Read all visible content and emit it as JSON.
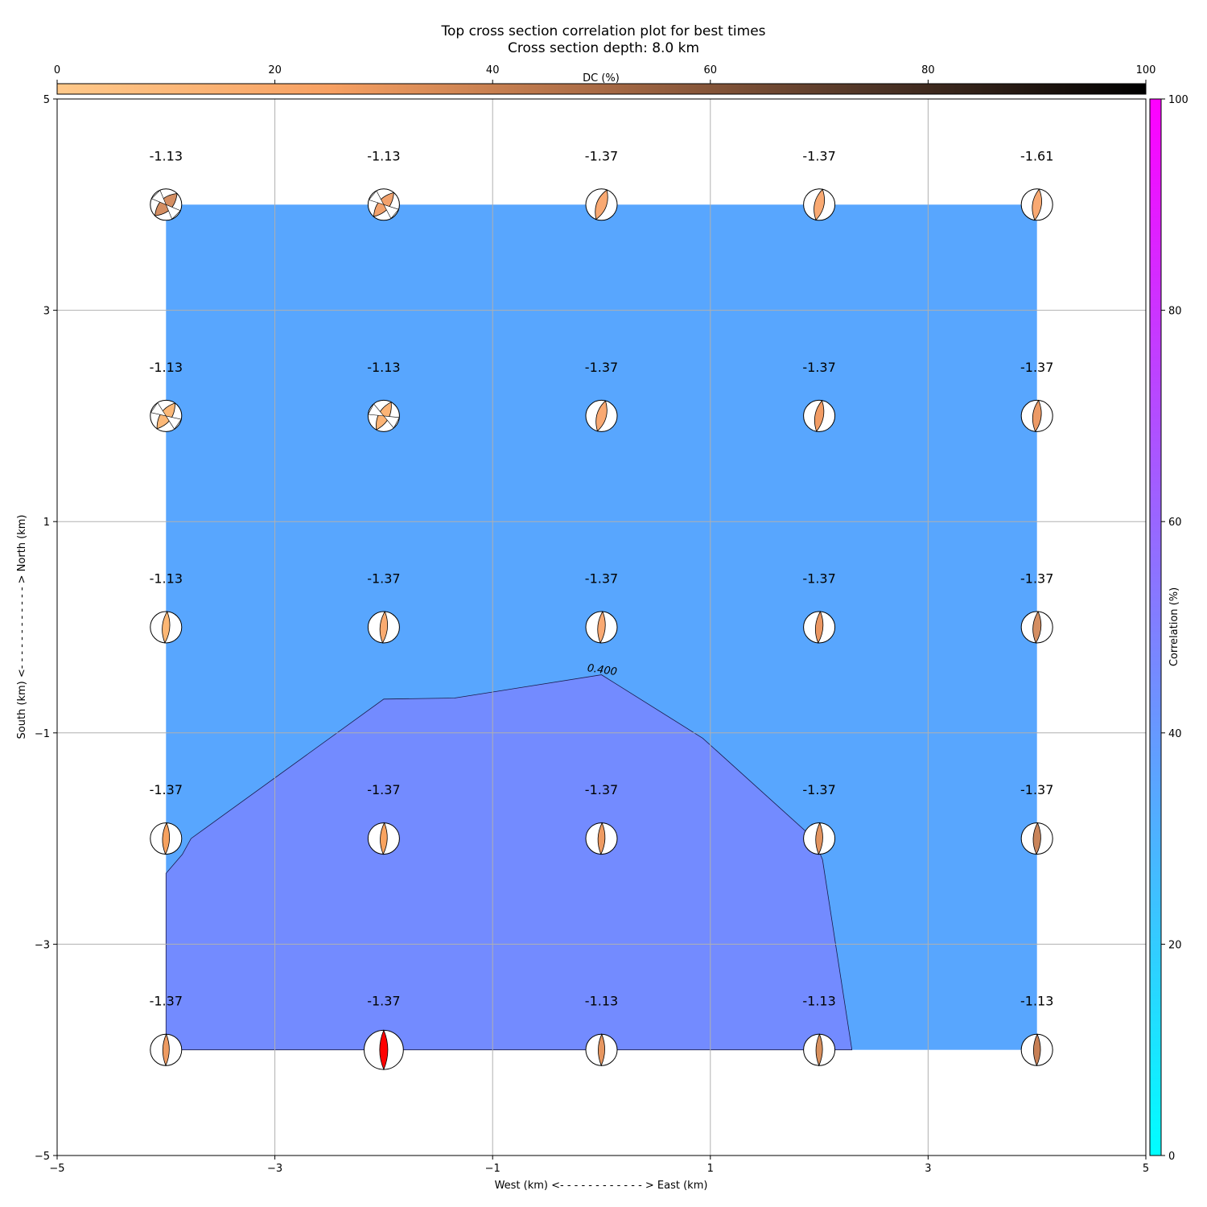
{
  "chart_data": {
    "type": "heatmap",
    "title": "Top cross section correlation plot for best times",
    "subtitle": "Cross section depth: 8.0 km",
    "xlabel": "West (km) <- - - - - - - - - - - - > East (km)",
    "ylabel": "South (km) <- - - - - - - - - - - - > North (km)",
    "xlim": [
      -5,
      5
    ],
    "ylim": [
      -5,
      5
    ],
    "xticks": [
      -5,
      -3,
      -1,
      1,
      3,
      5
    ],
    "yticks": [
      -5,
      -3,
      -1,
      1,
      3,
      5
    ],
    "grid": true,
    "dc_colorbar": {
      "label": "DC (%)",
      "range": [
        0,
        100
      ],
      "ticks": [
        0,
        20,
        40,
        60,
        80,
        100
      ],
      "colors": [
        "#ffc98a",
        "#f7a062",
        "#a86a45",
        "#4e3426",
        "#000000"
      ]
    },
    "correlation_colorbar": {
      "label": "Correlation (%)",
      "range": [
        0,
        100
      ],
      "ticks": [
        0,
        20,
        40,
        60,
        80,
        100
      ],
      "colors": [
        "#00ffff",
        "#ff00ff"
      ]
    },
    "field_regions": {
      "background_color": "#58a6fe",
      "inner_color": "#738bff",
      "extent": {
        "x": [
          -4,
          4
        ],
        "y": [
          -4,
          4
        ]
      },
      "contour_label": "0.400",
      "contour_level": 0.4,
      "contour_polygon": [
        [
          -4,
          -2.33
        ],
        [
          -3.85,
          -2.15
        ],
        [
          -3.77,
          -2.0
        ],
        [
          -2.0,
          -0.68
        ],
        [
          -1.35,
          -0.67
        ],
        [
          0.0,
          -0.45
        ],
        [
          0.93,
          -1.05
        ],
        [
          1.95,
          -2.0
        ],
        [
          2.03,
          -2.2
        ],
        [
          2.3,
          -4.0
        ],
        [
          -4.0,
          -4.0
        ]
      ]
    },
    "points": [
      {
        "x": -4,
        "y": 4,
        "label": "-1.13",
        "color": "#d48e62",
        "size": 1.0,
        "strike": 45,
        "lobe": 0.5
      },
      {
        "x": -2,
        "y": 4,
        "label": "-1.13",
        "color": "#f2a26d",
        "size": 1.0,
        "strike": 40,
        "lobe": 0.45
      },
      {
        "x": 0,
        "y": 4,
        "label": "-1.37",
        "color": "#f9a972",
        "size": 1.0,
        "strike": 20,
        "lobe": 0.4
      },
      {
        "x": 2,
        "y": 4,
        "label": "-1.37",
        "color": "#f9a972",
        "size": 1.0,
        "strike": 12,
        "lobe": 0.38
      },
      {
        "x": 4,
        "y": 4,
        "label": "-1.61",
        "color": "#f9a972",
        "size": 1.0,
        "strike": 8,
        "lobe": 0.36
      },
      {
        "x": -4,
        "y": 2,
        "label": "-1.13",
        "color": "#fbb878",
        "size": 1.0,
        "strike": 35,
        "lobe": 0.45
      },
      {
        "x": -2,
        "y": 2,
        "label": "-1.13",
        "color": "#fcb476",
        "size": 1.0,
        "strike": 28,
        "lobe": 0.42
      },
      {
        "x": 0,
        "y": 2,
        "label": "-1.37",
        "color": "#f9a972",
        "size": 1.0,
        "strike": 15,
        "lobe": 0.38
      },
      {
        "x": 2,
        "y": 2,
        "label": "-1.37",
        "color": "#f29c64",
        "size": 1.0,
        "strike": 10,
        "lobe": 0.34
      },
      {
        "x": 4,
        "y": 2,
        "label": "-1.37",
        "color": "#ec9a66",
        "size": 1.0,
        "strike": 6,
        "lobe": 0.34
      },
      {
        "x": -4,
        "y": 0,
        "label": "-1.13",
        "color": "#fcb774",
        "size": 1.0,
        "strike": 4,
        "lobe": 0.3
      },
      {
        "x": -2,
        "y": 0,
        "label": "-1.37",
        "color": "#fbab70",
        "size": 1.0,
        "strike": 4,
        "lobe": 0.3
      },
      {
        "x": 0,
        "y": 0,
        "label": "-1.37",
        "color": "#f9a972",
        "size": 1.0,
        "strike": 4,
        "lobe": 0.3
      },
      {
        "x": 2,
        "y": 0,
        "label": "-1.37",
        "color": "#eb9762",
        "size": 1.0,
        "strike": 4,
        "lobe": 0.3
      },
      {
        "x": 4,
        "y": 0,
        "label": "-1.37",
        "color": "#d48e62",
        "size": 1.0,
        "strike": 4,
        "lobe": 0.32
      },
      {
        "x": -4,
        "y": -2,
        "label": "-1.37",
        "color": "#f6a15f",
        "size": 1.0,
        "strike": 2,
        "lobe": 0.28
      },
      {
        "x": -2,
        "y": -2,
        "label": "-1.37",
        "color": "#f9a35f",
        "size": 1.0,
        "strike": 2,
        "lobe": 0.28
      },
      {
        "x": 0,
        "y": -2,
        "label": "-1.37",
        "color": "#ee9b62",
        "size": 1.0,
        "strike": 2,
        "lobe": 0.28
      },
      {
        "x": 2,
        "y": -2,
        "label": "-1.37",
        "color": "#e29460",
        "size": 1.0,
        "strike": 2,
        "lobe": 0.28
      },
      {
        "x": 4,
        "y": -2,
        "label": "-1.37",
        "color": "#c9845a",
        "size": 1.0,
        "strike": 2,
        "lobe": 0.3
      },
      {
        "x": -4,
        "y": -4,
        "label": "-1.37",
        "color": "#ee9b62",
        "size": 1.0,
        "strike": 1,
        "lobe": 0.26
      },
      {
        "x": -2,
        "y": -4,
        "label": "-1.37",
        "color": "#ff0000",
        "size": 1.25,
        "strike": 0,
        "lobe": 0.26
      },
      {
        "x": 0,
        "y": -4,
        "label": "-1.13",
        "color": "#e69660",
        "size": 1.0,
        "strike": 1,
        "lobe": 0.26
      },
      {
        "x": 2,
        "y": -4,
        "label": "-1.13",
        "color": "#d8905e",
        "size": 1.0,
        "strike": 1,
        "lobe": 0.26
      },
      {
        "x": 4,
        "y": -4,
        "label": "-1.13",
        "color": "#c77f55",
        "size": 1.0,
        "strike": 1,
        "lobe": 0.28
      }
    ]
  }
}
